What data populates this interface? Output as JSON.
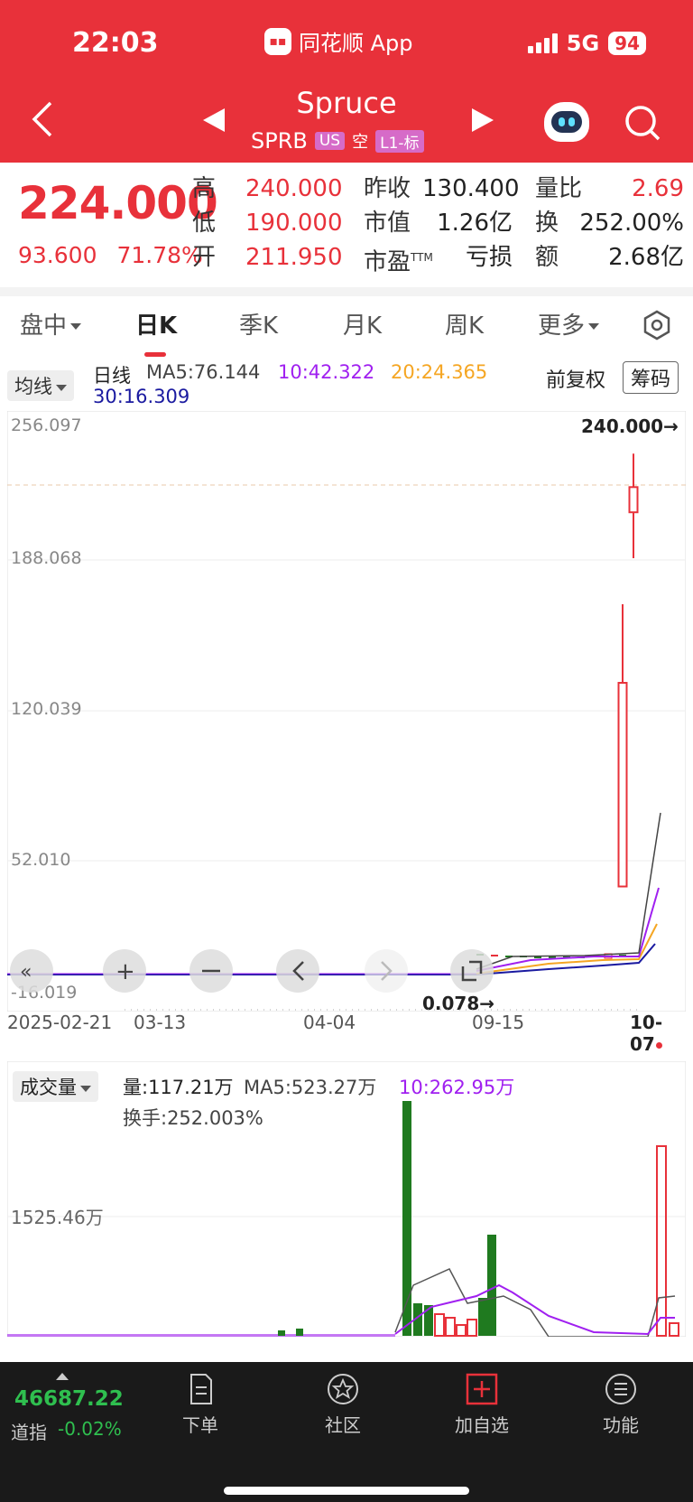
{
  "status": {
    "time": "22:03",
    "app": "同花顺 App",
    "network": "5G",
    "battery": "94"
  },
  "stock": {
    "name": "Spruce",
    "code": "SPRB",
    "market": "US",
    "tag_empty": "空",
    "level": "L1-标"
  },
  "quote": {
    "price": "224.000",
    "change": "93.600",
    "change_pct": "71.78%",
    "high_label": "高",
    "high": "240.000",
    "low_label": "低",
    "low": "190.000",
    "open_label": "开",
    "open": "211.950",
    "prev_close_label": "昨收",
    "prev_close": "130.400",
    "market_cap_label": "市值",
    "market_cap": "1.26亿",
    "pe_label": "市盈",
    "pe_sup": "TTM",
    "pe": "亏损",
    "vol_ratio_label": "量比",
    "vol_ratio": "2.69",
    "turnover_label": "换",
    "turnover": "252.00%",
    "amount_label": "额",
    "amount": "2.68亿"
  },
  "tabs": [
    "盘中",
    "日K",
    "季K",
    "月K",
    "周K",
    "更多"
  ],
  "ma": {
    "selector": "均线",
    "period": "日线",
    "ma5": "MA5:76.144",
    "ma10": "10:42.322",
    "ma20": "20:24.365",
    "ma30": "30:16.309",
    "adjust": "前复权",
    "chips": "筹码"
  },
  "colors": {
    "header": "#e8313a",
    "up": "#e8313a",
    "down": "#1f7a1f",
    "ma5": "#444444",
    "ma10": "#a020f0",
    "ma20": "#f5a623",
    "ma30": "#1a1aa0"
  },
  "main_chart": {
    "y_ticks": [
      "256.097",
      "188.068",
      "120.039",
      "52.010",
      "-16.019"
    ],
    "x_ticks": [
      "2025-02-21",
      "03-13",
      "04-04",
      "09-15",
      "10-07"
    ],
    "max_label": "240.000→",
    "min_label": "0.078→",
    "toolbar_icons": [
      "double-left-icon",
      "zoom-in-icon",
      "zoom-out-icon",
      "chevron-left-icon",
      "chevron-right-icon",
      "fullscreen-icon"
    ]
  },
  "volume": {
    "selector": "成交量",
    "vol": "量:117.21万",
    "ma5": "MA5:523.27万",
    "ma10": "10:262.95万",
    "turnover": "换手:252.003%",
    "y_tick": "1525.46万"
  },
  "chart_data": {
    "type": "candlestick",
    "candles": [
      {
        "o": 211.95,
        "h": 240.0,
        "l": 190.0,
        "c": 224.0
      },
      {
        "o": 33.0,
        "h": 168.0,
        "l": 33.0,
        "c": 130.4
      }
    ],
    "ylim": [
      -16.019,
      256.097
    ],
    "volume_ylim_label": "1525.46万"
  },
  "bottom": {
    "index_value": "46687.22",
    "index_name": "道指",
    "index_change": "-0.02%",
    "nav": [
      "下单",
      "社区",
      "加自选",
      "功能"
    ]
  }
}
